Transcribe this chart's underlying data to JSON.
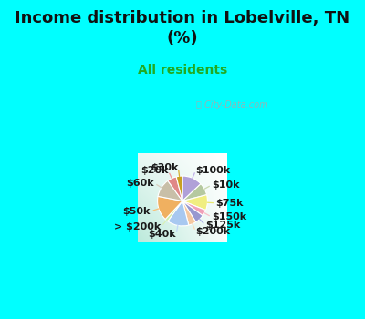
{
  "title": "Income distribution in Lobelville, TN\n(%)",
  "subtitle": "All residents",
  "bg_outer": "#00FFFF",
  "bg_chart_tl": "#c8ead8",
  "bg_chart_br": "#f5f5ff",
  "labels": [
    "$100k",
    "$10k",
    "$75k",
    "$150k",
    "$125k",
    "$200k",
    "$40k",
    "> $200k",
    "$50k",
    "$60k",
    "$20k",
    "$30k"
  ],
  "sizes": [
    13,
    8,
    10,
    4,
    6,
    5,
    14,
    2,
    16,
    12,
    6,
    4
  ],
  "colors": [
    "#b0a0d8",
    "#b5c9a0",
    "#f0ee80",
    "#f0a0b8",
    "#9898d0",
    "#f5c8a0",
    "#a8c8f0",
    "#cceeaa",
    "#f0b060",
    "#c8bfa8",
    "#e08888",
    "#c8a020"
  ],
  "label_fontsize": 8,
  "title_fontsize": 13,
  "subtitle_fontsize": 10,
  "subtitle_color": "#22aa22",
  "title_color": "#111111",
  "watermark": "City-Data.com",
  "line_colors": [
    "#c0b0e8",
    "#c8d8b0",
    "#e8e870",
    "#f8c0c8",
    "#b0b0e8",
    "#f8d8b8",
    "#c0d8f8",
    "#d8f0b8",
    "#f8c078",
    "#d8cfc0",
    "#f09898",
    "#d8b030"
  ]
}
